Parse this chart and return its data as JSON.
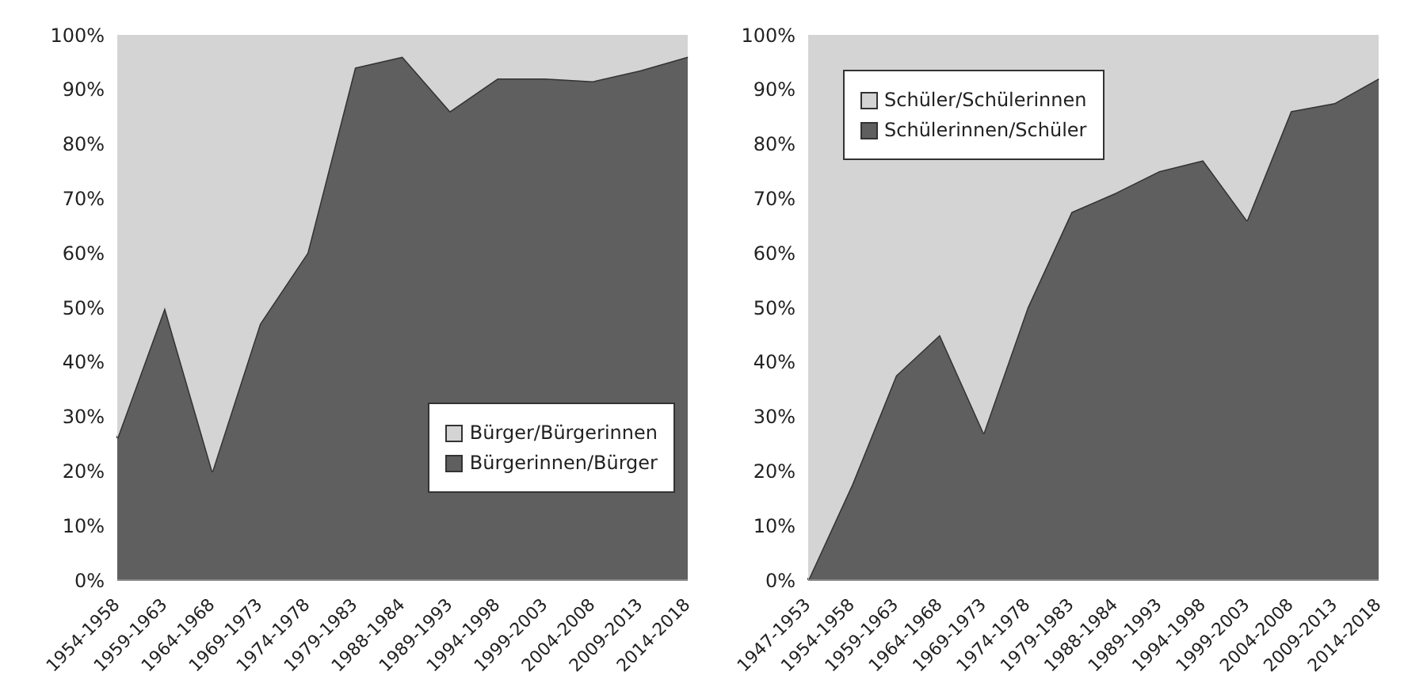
{
  "chart_data": [
    {
      "type": "area",
      "stacked": true,
      "categories": [
        "1954-1958",
        "1959-1963",
        "1964-1968",
        "1969-1973",
        "1974-1978",
        "1979-1983",
        "1988-1984",
        "1989-1993",
        "1994-1998",
        "1999-2003",
        "2004-2008",
        "2009-2013",
        "2014-2018"
      ],
      "series": [
        {
          "name": "Bürgerinnen/Bürger",
          "color": "#5f5f5f",
          "values": [
            26,
            50,
            20,
            47,
            60,
            94,
            96,
            86,
            92,
            92,
            91.5,
            93.5,
            96
          ]
        },
        {
          "name": "Bürger/Bürgerinnen",
          "color": "#d4d4d4",
          "values": [
            74,
            50,
            80,
            53,
            40,
            6,
            4,
            14,
            8,
            8,
            8.5,
            6.5,
            4
          ]
        }
      ],
      "ylim": [
        0,
        100
      ],
      "yticks": [
        {
          "value": 0,
          "label": "0%"
        },
        {
          "value": 10,
          "label": "10%"
        },
        {
          "value": 20,
          "label": "20%"
        },
        {
          "value": 30,
          "label": "30%"
        },
        {
          "value": 40,
          "label": "40%"
        },
        {
          "value": 50,
          "label": "50%"
        },
        {
          "value": 60,
          "label": "60%"
        },
        {
          "value": 70,
          "label": "70%"
        },
        {
          "value": 80,
          "label": "80%"
        },
        {
          "value": 90,
          "label": "90%"
        },
        {
          "value": 100,
          "label": "100%"
        }
      ],
      "legend": "bottom right",
      "grid": false
    },
    {
      "type": "area",
      "stacked": true,
      "categories": [
        "1947-1953",
        "1954-1958",
        "1959-1963",
        "1964-1968",
        "1969-1973",
        "1974-1978",
        "1979-1983",
        "1988-1984",
        "1989-1993",
        "1994-1998",
        "1999-2003",
        "2004-2008",
        "2009-2013",
        "2014-2018"
      ],
      "series": [
        {
          "name": "Schülerinnen/Schüler",
          "color": "#5f5f5f",
          "values": [
            0,
            17.5,
            37.5,
            45,
            27,
            50,
            67.5,
            71,
            75,
            77,
            66,
            86,
            87.5,
            92
          ]
        },
        {
          "name": "Schüler/Schülerinnen",
          "color": "#d4d4d4",
          "values": [
            100,
            82.5,
            62.5,
            55,
            73,
            50,
            32.5,
            29,
            25,
            23,
            34,
            14,
            12.5,
            8
          ]
        }
      ],
      "ylim": [
        0,
        100
      ],
      "yticks": [
        {
          "value": 0,
          "label": "0%"
        },
        {
          "value": 10,
          "label": "10%"
        },
        {
          "value": 20,
          "label": "20%"
        },
        {
          "value": 30,
          "label": "30%"
        },
        {
          "value": 40,
          "label": "40%"
        },
        {
          "value": 50,
          "label": "50%"
        },
        {
          "value": 60,
          "label": "60%"
        },
        {
          "value": 70,
          "label": "70%"
        },
        {
          "value": 80,
          "label": "80%"
        },
        {
          "value": 90,
          "label": "90%"
        },
        {
          "value": 100,
          "label": "100%"
        }
      ],
      "legend": "top left",
      "grid": false
    }
  ]
}
